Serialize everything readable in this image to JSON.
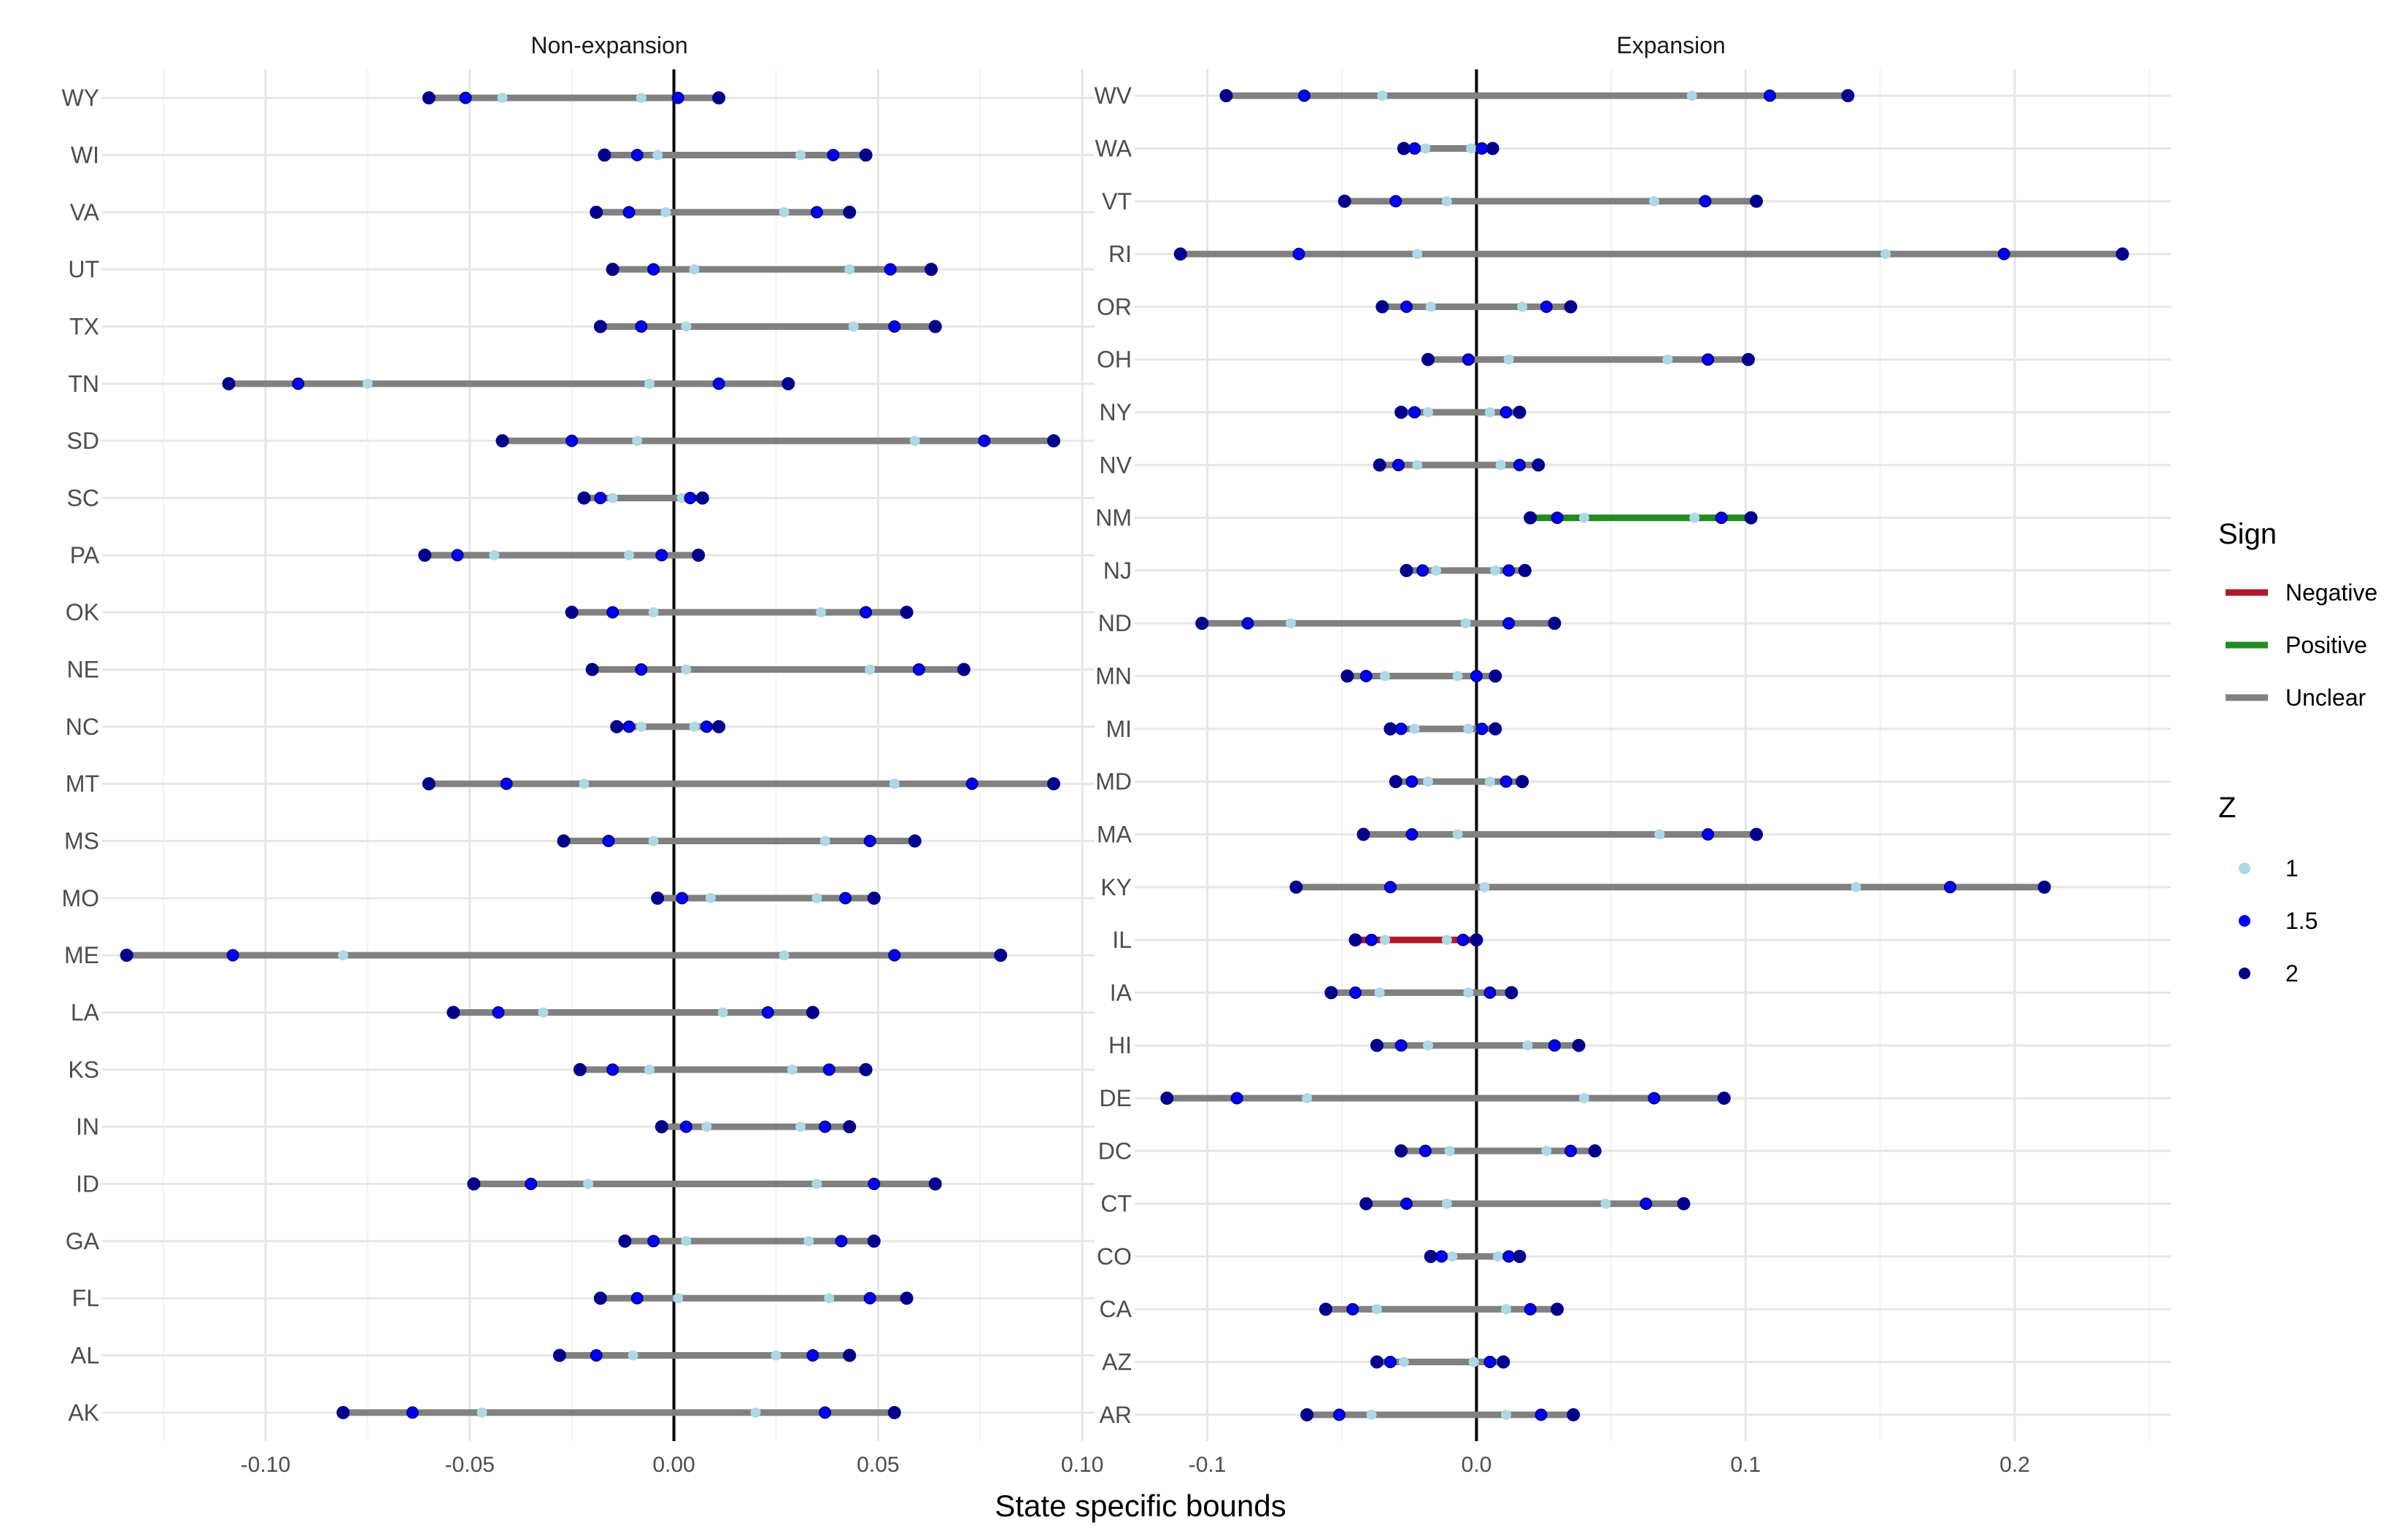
{
  "chart_data": {
    "type": "dumbbell",
    "xlabel": "State specific bounds",
    "sign_colors": {
      "Negative": "#b2182b",
      "Positive": "#228b22",
      "Unclear": "#808080"
    },
    "z_colors": {
      "1": "#add8e6",
      "1.5": "#0000ff",
      "2": "#00008b"
    },
    "legend": {
      "sign_title": "Sign",
      "sign_items": [
        "Negative",
        "Positive",
        "Unclear"
      ],
      "z_title": "Z",
      "z_items": [
        "1",
        "1.5",
        "2"
      ]
    },
    "panels": [
      {
        "title": "Non-expansion",
        "xlim": [
          -0.14,
          0.103
        ],
        "xticks": [
          -0.1,
          -0.05,
          0.0,
          0.05,
          0.1
        ],
        "xtick_labels": [
          "-0.10",
          "-0.05",
          "0.00",
          "0.05",
          "0.10"
        ],
        "states": [
          {
            "state": "WY",
            "sign": "Unclear",
            "z1": [
              -0.042,
              -0.008
            ],
            "z15": [
              -0.051,
              0.001
            ],
            "z2": [
              -0.06,
              0.011
            ]
          },
          {
            "state": "WI",
            "sign": "Unclear",
            "z1": [
              -0.004,
              0.031
            ],
            "z15": [
              -0.009,
              0.039
            ],
            "z2": [
              -0.017,
              0.047
            ]
          },
          {
            "state": "VA",
            "sign": "Unclear",
            "z1": [
              -0.002,
              0.027
            ],
            "z15": [
              -0.011,
              0.035
            ],
            "z2": [
              -0.019,
              0.043
            ]
          },
          {
            "state": "UT",
            "sign": "Unclear",
            "z1": [
              0.005,
              0.043
            ],
            "z15": [
              -0.005,
              0.053
            ],
            "z2": [
              -0.015,
              0.063
            ]
          },
          {
            "state": "TX",
            "sign": "Unclear",
            "z1": [
              0.003,
              0.044
            ],
            "z15": [
              -0.008,
              0.054
            ],
            "z2": [
              -0.018,
              0.064
            ]
          },
          {
            "state": "TN",
            "sign": "Unclear",
            "z1": [
              -0.075,
              -0.006
            ],
            "z15": [
              -0.092,
              0.011
            ],
            "z2": [
              -0.109,
              0.028
            ]
          },
          {
            "state": "SD",
            "sign": "Unclear",
            "z1": [
              -0.009,
              0.059
            ],
            "z15": [
              -0.025,
              0.076
            ],
            "z2": [
              -0.042,
              0.093
            ]
          },
          {
            "state": "SC",
            "sign": "Unclear",
            "z1": [
              -0.015,
              0.002
            ],
            "z15": [
              -0.018,
              0.004
            ],
            "z2": [
              -0.022,
              0.007
            ]
          },
          {
            "state": "PA",
            "sign": "Unclear",
            "z1": [
              -0.044,
              -0.011
            ],
            "z15": [
              -0.053,
              -0.003
            ],
            "z2": [
              -0.061,
              0.006
            ]
          },
          {
            "state": "OK",
            "sign": "Unclear",
            "z1": [
              -0.005,
              0.036
            ],
            "z15": [
              -0.015,
              0.047
            ],
            "z2": [
              -0.025,
              0.057
            ]
          },
          {
            "state": "NE",
            "sign": "Unclear",
            "z1": [
              0.003,
              0.048
            ],
            "z15": [
              -0.008,
              0.06
            ],
            "z2": [
              -0.02,
              0.071
            ]
          },
          {
            "state": "NC",
            "sign": "Unclear",
            "z1": [
              -0.008,
              0.005
            ],
            "z15": [
              -0.011,
              0.008
            ],
            "z2": [
              -0.014,
              0.011
            ]
          },
          {
            "state": "MT",
            "sign": "Unclear",
            "z1": [
              -0.022,
              0.054
            ],
            "z15": [
              -0.041,
              0.073
            ],
            "z2": [
              -0.06,
              0.093
            ]
          },
          {
            "state": "MS",
            "sign": "Unclear",
            "z1": [
              -0.005,
              0.037
            ],
            "z15": [
              -0.016,
              0.048
            ],
            "z2": [
              -0.027,
              0.059
            ]
          },
          {
            "state": "MO",
            "sign": "Unclear",
            "z1": [
              0.009,
              0.035
            ],
            "z15": [
              0.002,
              0.042
            ],
            "z2": [
              -0.004,
              0.049
            ]
          },
          {
            "state": "ME",
            "sign": "Unclear",
            "z1": [
              -0.081,
              0.027
            ],
            "z15": [
              -0.108,
              0.054
            ],
            "z2": [
              -0.134,
              0.08
            ]
          },
          {
            "state": "LA",
            "sign": "Unclear",
            "z1": [
              -0.032,
              0.012
            ],
            "z15": [
              -0.043,
              0.023
            ],
            "z2": [
              -0.054,
              0.034
            ]
          },
          {
            "state": "KS",
            "sign": "Unclear",
            "z1": [
              -0.006,
              0.029
            ],
            "z15": [
              -0.015,
              0.038
            ],
            "z2": [
              -0.023,
              0.047
            ]
          },
          {
            "state": "IN",
            "sign": "Unclear",
            "z1": [
              0.008,
              0.031
            ],
            "z15": [
              0.003,
              0.037
            ],
            "z2": [
              -0.003,
              0.043
            ]
          },
          {
            "state": "ID",
            "sign": "Unclear",
            "z1": [
              -0.021,
              0.035
            ],
            "z15": [
              -0.035,
              0.049
            ],
            "z2": [
              -0.049,
              0.064
            ]
          },
          {
            "state": "GA",
            "sign": "Unclear",
            "z1": [
              0.003,
              0.033
            ],
            "z15": [
              -0.005,
              0.041
            ],
            "z2": [
              -0.012,
              0.049
            ]
          },
          {
            "state": "FL",
            "sign": "Unclear",
            "z1": [
              0.001,
              0.038
            ],
            "z15": [
              -0.009,
              0.048
            ],
            "z2": [
              -0.018,
              0.057
            ]
          },
          {
            "state": "AL",
            "sign": "Unclear",
            "z1": [
              -0.01,
              0.025
            ],
            "z15": [
              -0.019,
              0.034
            ],
            "z2": [
              -0.028,
              0.043
            ]
          },
          {
            "state": "AK",
            "sign": "Unclear",
            "z1": [
              -0.047,
              0.02
            ],
            "z15": [
              -0.064,
              0.037
            ],
            "z2": [
              -0.081,
              0.054
            ]
          }
        ]
      },
      {
        "title": "Expansion",
        "xlim": [
          -0.127,
          0.258
        ],
        "xticks": [
          -0.1,
          0.0,
          0.1,
          0.2
        ],
        "xtick_labels": [
          "-0.1",
          "0.0",
          "0.1",
          "0.2"
        ],
        "states": [
          {
            "state": "WV",
            "sign": "Unclear",
            "z1": [
              -0.035,
              0.08
            ],
            "z15": [
              -0.064,
              0.109
            ],
            "z2": [
              -0.093,
              0.138
            ]
          },
          {
            "state": "WA",
            "sign": "Unclear",
            "z1": [
              -0.019,
              -0.002
            ],
            "z15": [
              -0.023,
              0.002
            ],
            "z2": [
              -0.027,
              0.006
            ]
          },
          {
            "state": "VT",
            "sign": "Unclear",
            "z1": [
              -0.011,
              0.066
            ],
            "z15": [
              -0.03,
              0.085
            ],
            "z2": [
              -0.049,
              0.104
            ]
          },
          {
            "state": "RI",
            "sign": "Unclear",
            "z1": [
              -0.022,
              0.152
            ],
            "z15": [
              -0.066,
              0.196
            ],
            "z2": [
              -0.11,
              0.24
            ]
          },
          {
            "state": "OR",
            "sign": "Unclear",
            "z1": [
              -0.017,
              0.017
            ],
            "z15": [
              -0.026,
              0.026
            ],
            "z2": [
              -0.035,
              0.035
            ]
          },
          {
            "state": "OH",
            "sign": "Unclear",
            "z1": [
              0.012,
              0.071
            ],
            "z15": [
              -0.003,
              0.086
            ],
            "z2": [
              -0.018,
              0.101
            ]
          },
          {
            "state": "NY",
            "sign": "Unclear",
            "z1": [
              -0.018,
              0.005
            ],
            "z15": [
              -0.023,
              0.011
            ],
            "z2": [
              -0.028,
              0.016
            ]
          },
          {
            "state": "NV",
            "sign": "Unclear",
            "z1": [
              -0.022,
              0.009
            ],
            "z15": [
              -0.029,
              0.016
            ],
            "z2": [
              -0.036,
              0.023
            ]
          },
          {
            "state": "NM",
            "sign": "Positive",
            "z1": [
              0.04,
              0.081
            ],
            "z15": [
              0.03,
              0.091
            ],
            "z2": [
              0.02,
              0.102
            ]
          },
          {
            "state": "NJ",
            "sign": "Unclear",
            "z1": [
              -0.015,
              0.007
            ],
            "z15": [
              -0.02,
              0.012
            ],
            "z2": [
              -0.026,
              0.018
            ]
          },
          {
            "state": "ND",
            "sign": "Unclear",
            "z1": [
              -0.069,
              -0.004
            ],
            "z15": [
              -0.085,
              0.012
            ],
            "z2": [
              -0.102,
              0.029
            ]
          },
          {
            "state": "MN",
            "sign": "Unclear",
            "z1": [
              -0.034,
              -0.007
            ],
            "z15": [
              -0.041,
              0.0
            ],
            "z2": [
              -0.048,
              0.007
            ]
          },
          {
            "state": "MI",
            "sign": "Unclear",
            "z1": [
              -0.023,
              -0.003
            ],
            "z15": [
              -0.028,
              0.002
            ],
            "z2": [
              -0.032,
              0.007
            ]
          },
          {
            "state": "MD",
            "sign": "Unclear",
            "z1": [
              -0.018,
              0.005
            ],
            "z15": [
              -0.024,
              0.011
            ],
            "z2": [
              -0.03,
              0.017
            ]
          },
          {
            "state": "MA",
            "sign": "Unclear",
            "z1": [
              -0.007,
              0.068
            ],
            "z15": [
              -0.024,
              0.086
            ],
            "z2": [
              -0.042,
              0.104
            ]
          },
          {
            "state": "KY",
            "sign": "Unclear",
            "z1": [
              0.003,
              0.141
            ],
            "z15": [
              -0.032,
              0.176
            ],
            "z2": [
              -0.067,
              0.211
            ]
          },
          {
            "state": "IL",
            "sign": "Negative",
            "z1": [
              -0.034,
              -0.011
            ],
            "z15": [
              -0.039,
              -0.005
            ],
            "z2": [
              -0.045,
              0.0
            ]
          },
          {
            "state": "IA",
            "sign": "Unclear",
            "z1": [
              -0.036,
              -0.003
            ],
            "z15": [
              -0.045,
              0.005
            ],
            "z2": [
              -0.054,
              0.013
            ]
          },
          {
            "state": "HI",
            "sign": "Unclear",
            "z1": [
              -0.018,
              0.019
            ],
            "z15": [
              -0.028,
              0.029
            ],
            "z2": [
              -0.037,
              0.038
            ]
          },
          {
            "state": "DE",
            "sign": "Unclear",
            "z1": [
              -0.063,
              0.04
            ],
            "z15": [
              -0.089,
              0.066
            ],
            "z2": [
              -0.115,
              0.092
            ]
          },
          {
            "state": "DC",
            "sign": "Unclear",
            "z1": [
              -0.01,
              0.026
            ],
            "z15": [
              -0.019,
              0.035
            ],
            "z2": [
              -0.028,
              0.044
            ]
          },
          {
            "state": "CT",
            "sign": "Unclear",
            "z1": [
              -0.011,
              0.048
            ],
            "z15": [
              -0.026,
              0.063
            ],
            "z2": [
              -0.041,
              0.077
            ]
          },
          {
            "state": "CO",
            "sign": "Unclear",
            "z1": [
              -0.009,
              0.008
            ],
            "z15": [
              -0.013,
              0.012
            ],
            "z2": [
              -0.017,
              0.016
            ]
          },
          {
            "state": "CA",
            "sign": "Unclear",
            "z1": [
              -0.037,
              0.011
            ],
            "z15": [
              -0.046,
              0.02
            ],
            "z2": [
              -0.056,
              0.03
            ]
          },
          {
            "state": "AZ",
            "sign": "Unclear",
            "z1": [
              -0.027,
              -0.001
            ],
            "z15": [
              -0.032,
              0.005
            ],
            "z2": [
              -0.037,
              0.01
            ]
          },
          {
            "state": "AR",
            "sign": "Unclear",
            "z1": [
              -0.039,
              0.011
            ],
            "z15": [
              -0.051,
              0.024
            ],
            "z2": [
              -0.063,
              0.036
            ]
          }
        ]
      }
    ]
  }
}
